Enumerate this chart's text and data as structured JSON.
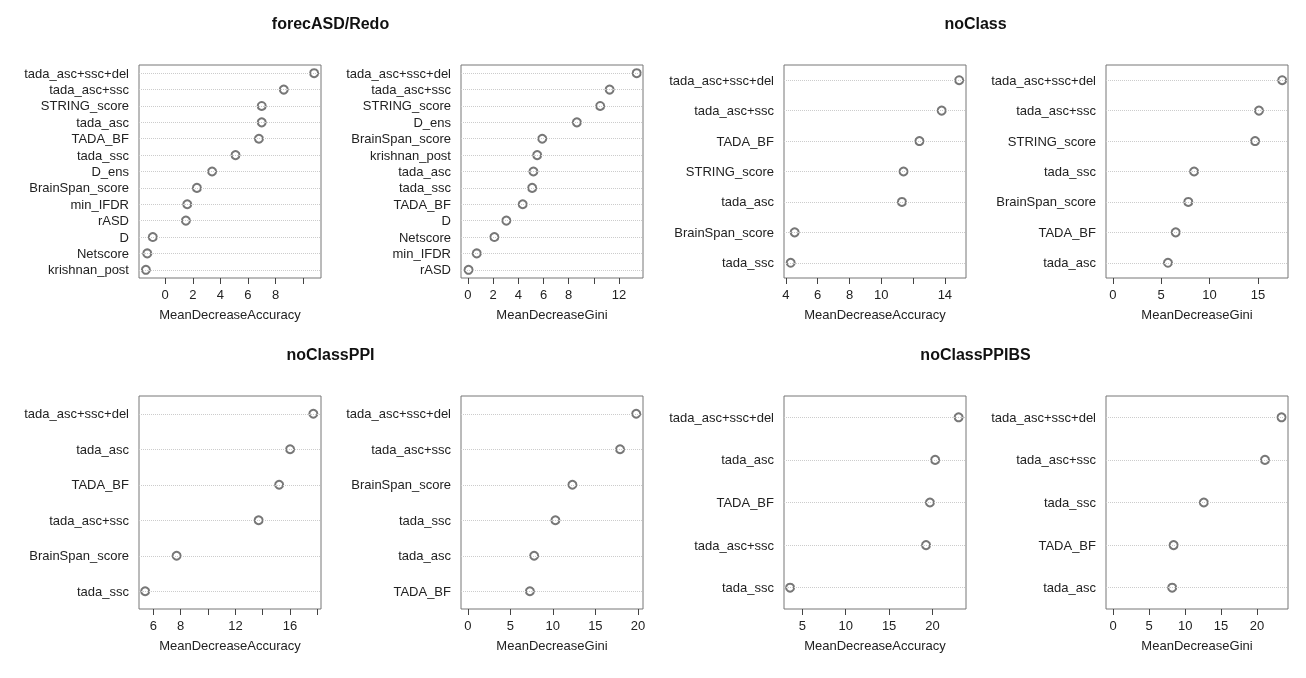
{
  "chart_data": [
    {
      "type": "scatter",
      "orientation": "horizontal",
      "title": "forecASD/Redo",
      "xlabel": "MeanDecreaseAccuracy",
      "categories": [
        "tada_asc+ssc+del",
        "tada_asc+ssc",
        "STRING_score",
        "tada_asc",
        "TADA_BF",
        "tada_ssc",
        "D_ens",
        "BrainSpan_score",
        "min_IFDR",
        "rASD",
        "D",
        "Netscore",
        "krishnan_post"
      ],
      "values": [
        10.8,
        8.6,
        7.0,
        7.0,
        6.8,
        5.1,
        3.4,
        2.3,
        1.6,
        1.5,
        -0.9,
        -1.3,
        -1.4
      ],
      "color": "#555555",
      "marker": "circle",
      "grid": "y",
      "xlim": [
        -1.9,
        11.3
      ],
      "xticks": [
        0,
        2,
        4,
        6,
        8,
        {
          "value": 10,
          "label": null
        }
      ]
    },
    {
      "type": "scatter",
      "orientation": "horizontal",
      "xlabel": "MeanDecreaseGini",
      "categories": [
        "tada_asc+ssc+del",
        "tada_asc+ssc",
        "STRING_score",
        "D_ens",
        "BrainSpan_score",
        "krishnan_post",
        "tada_asc",
        "tada_ssc",
        "TADA_BF",
        "D",
        "Netscore",
        "min_IFDR",
        "rASD"
      ],
      "values": [
        13.4,
        11.25,
        10.5,
        8.65,
        5.9,
        5.5,
        5.2,
        5.1,
        4.35,
        3.05,
        2.1,
        0.7,
        0.05
      ],
      "color": "#555555",
      "marker": "circle",
      "grid": "y",
      "xlim": [
        -0.55,
        13.9
      ],
      "xticks": [
        0,
        2,
        4,
        6,
        8,
        {
          "value": 10,
          "label": null
        },
        12
      ]
    },
    {
      "type": "scatter",
      "orientation": "horizontal",
      "title": "noClass",
      "xlabel": "MeanDecreaseAccuracy",
      "categories": [
        "tada_asc+ssc+del",
        "tada_asc+ssc",
        "TADA_BF",
        "STRING_score",
        "tada_asc",
        "BrainSpan_score",
        "tada_ssc"
      ],
      "values": [
        14.9,
        13.8,
        12.4,
        11.4,
        11.3,
        4.55,
        4.3
      ],
      "color": "#555555",
      "marker": "circle",
      "grid": "y",
      "xlim": [
        3.88,
        15.33
      ],
      "xticks": [
        4,
        6,
        8,
        10,
        {
          "value": 12,
          "label": null
        },
        14
      ]
    },
    {
      "type": "scatter",
      "orientation": "horizontal",
      "xlabel": "MeanDecreaseGini",
      "categories": [
        "tada_asc+ssc+del",
        "tada_asc+ssc",
        "STRING_score",
        "tada_ssc",
        "BrainSpan_score",
        "TADA_BF",
        "tada_asc"
      ],
      "values": [
        17.5,
        15.1,
        14.7,
        8.4,
        7.8,
        6.5,
        5.7
      ],
      "color": "#555555",
      "marker": "circle",
      "grid": "y",
      "xlim": [
        -0.7,
        18.1
      ],
      "xticks": [
        0,
        5,
        10,
        15
      ]
    },
    {
      "type": "scatter",
      "orientation": "horizontal",
      "title": "noClassPPI",
      "xlabel": "MeanDecreaseAccuracy",
      "categories": [
        "tada_asc+ssc+del",
        "tada_asc",
        "TADA_BF",
        "tada_asc+ssc",
        "BrainSpan_score",
        "tada_ssc"
      ],
      "values": [
        17.7,
        16.0,
        15.2,
        13.7,
        7.7,
        5.4
      ],
      "color": "#555555",
      "marker": "circle",
      "grid": "y",
      "xlim": [
        4.95,
        18.26
      ],
      "xticks": [
        6,
        8,
        {
          "value": 10,
          "label": null
        },
        12,
        {
          "value": 14,
          "label": null
        },
        16,
        {
          "value": 18,
          "label": null
        }
      ]
    },
    {
      "type": "scatter",
      "orientation": "horizontal",
      "xlabel": "MeanDecreaseGini",
      "categories": [
        "tada_asc+ssc+del",
        "tada_asc+ssc",
        "BrainSpan_score",
        "tada_ssc",
        "tada_asc",
        "TADA_BF"
      ],
      "values": [
        19.8,
        17.9,
        12.3,
        10.3,
        7.8,
        7.3
      ],
      "color": "#555555",
      "marker": "circle",
      "grid": "y",
      "xlim": [
        -0.8,
        20.6
      ],
      "xticks": [
        0,
        5,
        10,
        15,
        20
      ]
    },
    {
      "type": "scatter",
      "orientation": "horizontal",
      "title": "noClassPPIBS",
      "xlabel": "MeanDecreaseAccuracy",
      "categories": [
        "tada_asc+ssc+del",
        "tada_asc",
        "TADA_BF",
        "tada_asc+ssc",
        "tada_ssc"
      ],
      "values": [
        23.0,
        20.3,
        19.7,
        19.25,
        3.6
      ],
      "color": "#555555",
      "marker": "circle",
      "grid": "y",
      "xlim": [
        2.9,
        23.85
      ],
      "xticks": [
        5,
        10,
        15,
        20
      ]
    },
    {
      "type": "scatter",
      "orientation": "horizontal",
      "xlabel": "MeanDecreaseGini",
      "categories": [
        "tada_asc+ssc+del",
        "tada_asc+ssc",
        "tada_ssc",
        "TADA_BF",
        "tada_asc"
      ],
      "values": [
        23.4,
        21.1,
        12.6,
        8.4,
        8.2
      ],
      "color": "#555555",
      "marker": "circle",
      "grid": "y",
      "xlim": [
        -1.0,
        24.3
      ],
      "xticks": [
        0,
        5,
        10,
        15,
        20
      ]
    }
  ]
}
